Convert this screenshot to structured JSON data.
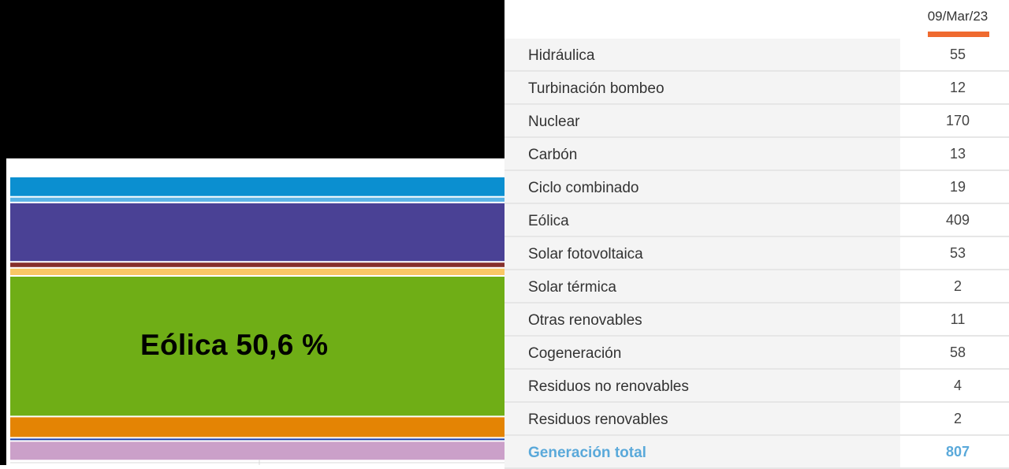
{
  "chart_data": {
    "type": "bar",
    "orientation": "stacked-100",
    "annotation": "Eólica 50,6 %",
    "segments_top_to_bottom": [
      {
        "color": "#0b8fd0",
        "value": 55
      },
      {
        "color": "#5ab3e5",
        "value": 12
      },
      {
        "color": "#4a4195",
        "value": 170
      },
      {
        "color": "#862f2b",
        "value": 13
      },
      {
        "color": "#f9c766",
        "value": 19
      },
      {
        "color": "#6fae16",
        "value": 409
      },
      {
        "color": "#e48404",
        "value": 58
      },
      {
        "color": "#1b3fa8",
        "value": 4
      },
      {
        "color": "#cba0c9",
        "value": 53
      }
    ]
  },
  "table": {
    "date": "09/Mar/23",
    "rows": [
      {
        "label": "Hidráulica",
        "value": "55"
      },
      {
        "label": "Turbinación bombeo",
        "value": "12"
      },
      {
        "label": "Nuclear",
        "value": "170"
      },
      {
        "label": "Carbón",
        "value": "13"
      },
      {
        "label": "Ciclo combinado",
        "value": "19"
      },
      {
        "label": "Eólica",
        "value": "409"
      },
      {
        "label": "Solar fotovoltaica",
        "value": "53"
      },
      {
        "label": "Solar térmica",
        "value": "2"
      },
      {
        "label": "Otras renovables",
        "value": "11"
      },
      {
        "label": "Cogeneración",
        "value": "58"
      },
      {
        "label": "Residuos no renovables",
        "value": "4"
      },
      {
        "label": "Residuos renovables",
        "value": "2"
      }
    ],
    "total": {
      "label": "Generación total",
      "value": "807"
    }
  },
  "colors": {
    "accent_underline": "#ef6a2f",
    "total_text": "#5aa9da"
  }
}
